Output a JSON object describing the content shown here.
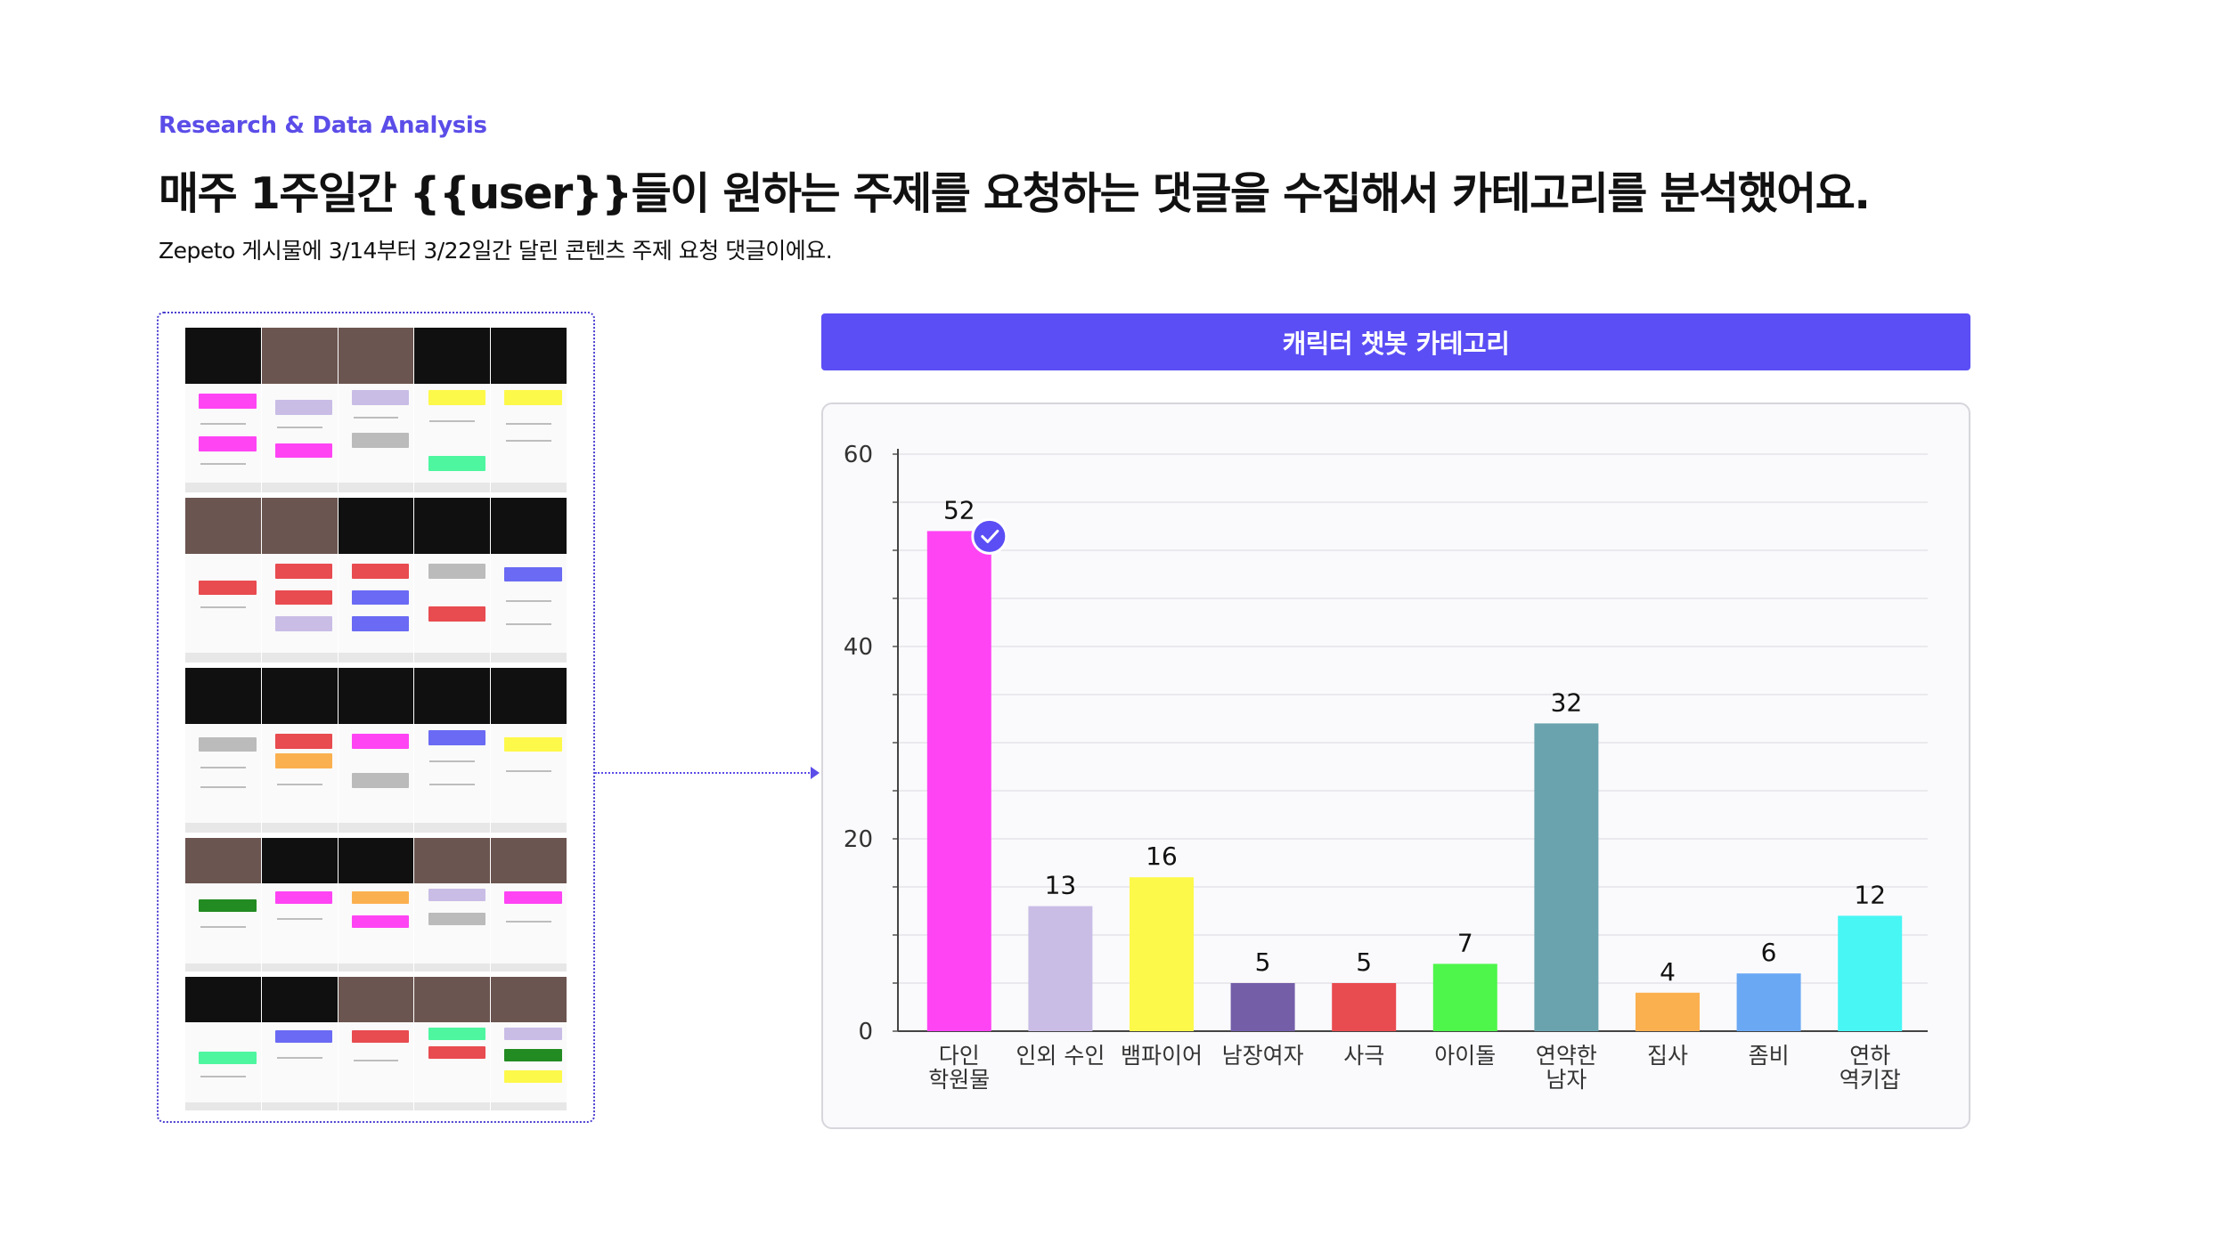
{
  "page": {
    "kicker": "Research & Data Analysis",
    "headline": "매주 1주일간 {{user}}들이 원하는 주제를 요청하는 댓글을 수집해서 카테고리를 분석했어요.",
    "subline": "Zepeto 게시물에 3/14부터 3/22일간 달린 콘텐츠 주제 요청 댓글이에요."
  },
  "colors": {
    "accent": "#5b4ef5",
    "kicker": "#5b4de8",
    "check_badge": "#5b4ef5"
  },
  "chart_data": {
    "type": "bar",
    "title": "캐릭터 챗봇 카테고리",
    "categories": [
      [
        "다인",
        "학원물"
      ],
      [
        "인외 수인"
      ],
      [
        "뱀파이어"
      ],
      [
        "남장여자"
      ],
      [
        "사극"
      ],
      [
        "아이돌"
      ],
      [
        "연약한",
        "남자"
      ],
      [
        "집사"
      ],
      [
        "좀비"
      ],
      [
        "연하",
        "역키잡"
      ]
    ],
    "values": [
      52,
      13,
      16,
      5,
      5,
      7,
      32,
      4,
      6,
      12
    ],
    "colors": [
      "#ff44f4",
      "#c9bde6",
      "#fdf94a",
      "#745ea8",
      "#e84b50",
      "#4ef64b",
      "#6aa3ae",
      "#fbb04f",
      "#6aa8f4",
      "#48f6f4"
    ],
    "ylim": [
      0,
      60
    ],
    "yticks": [
      0,
      20,
      40,
      60
    ],
    "highlighted_index": 0,
    "xlabel": "",
    "ylabel": "",
    "grid": true
  }
}
